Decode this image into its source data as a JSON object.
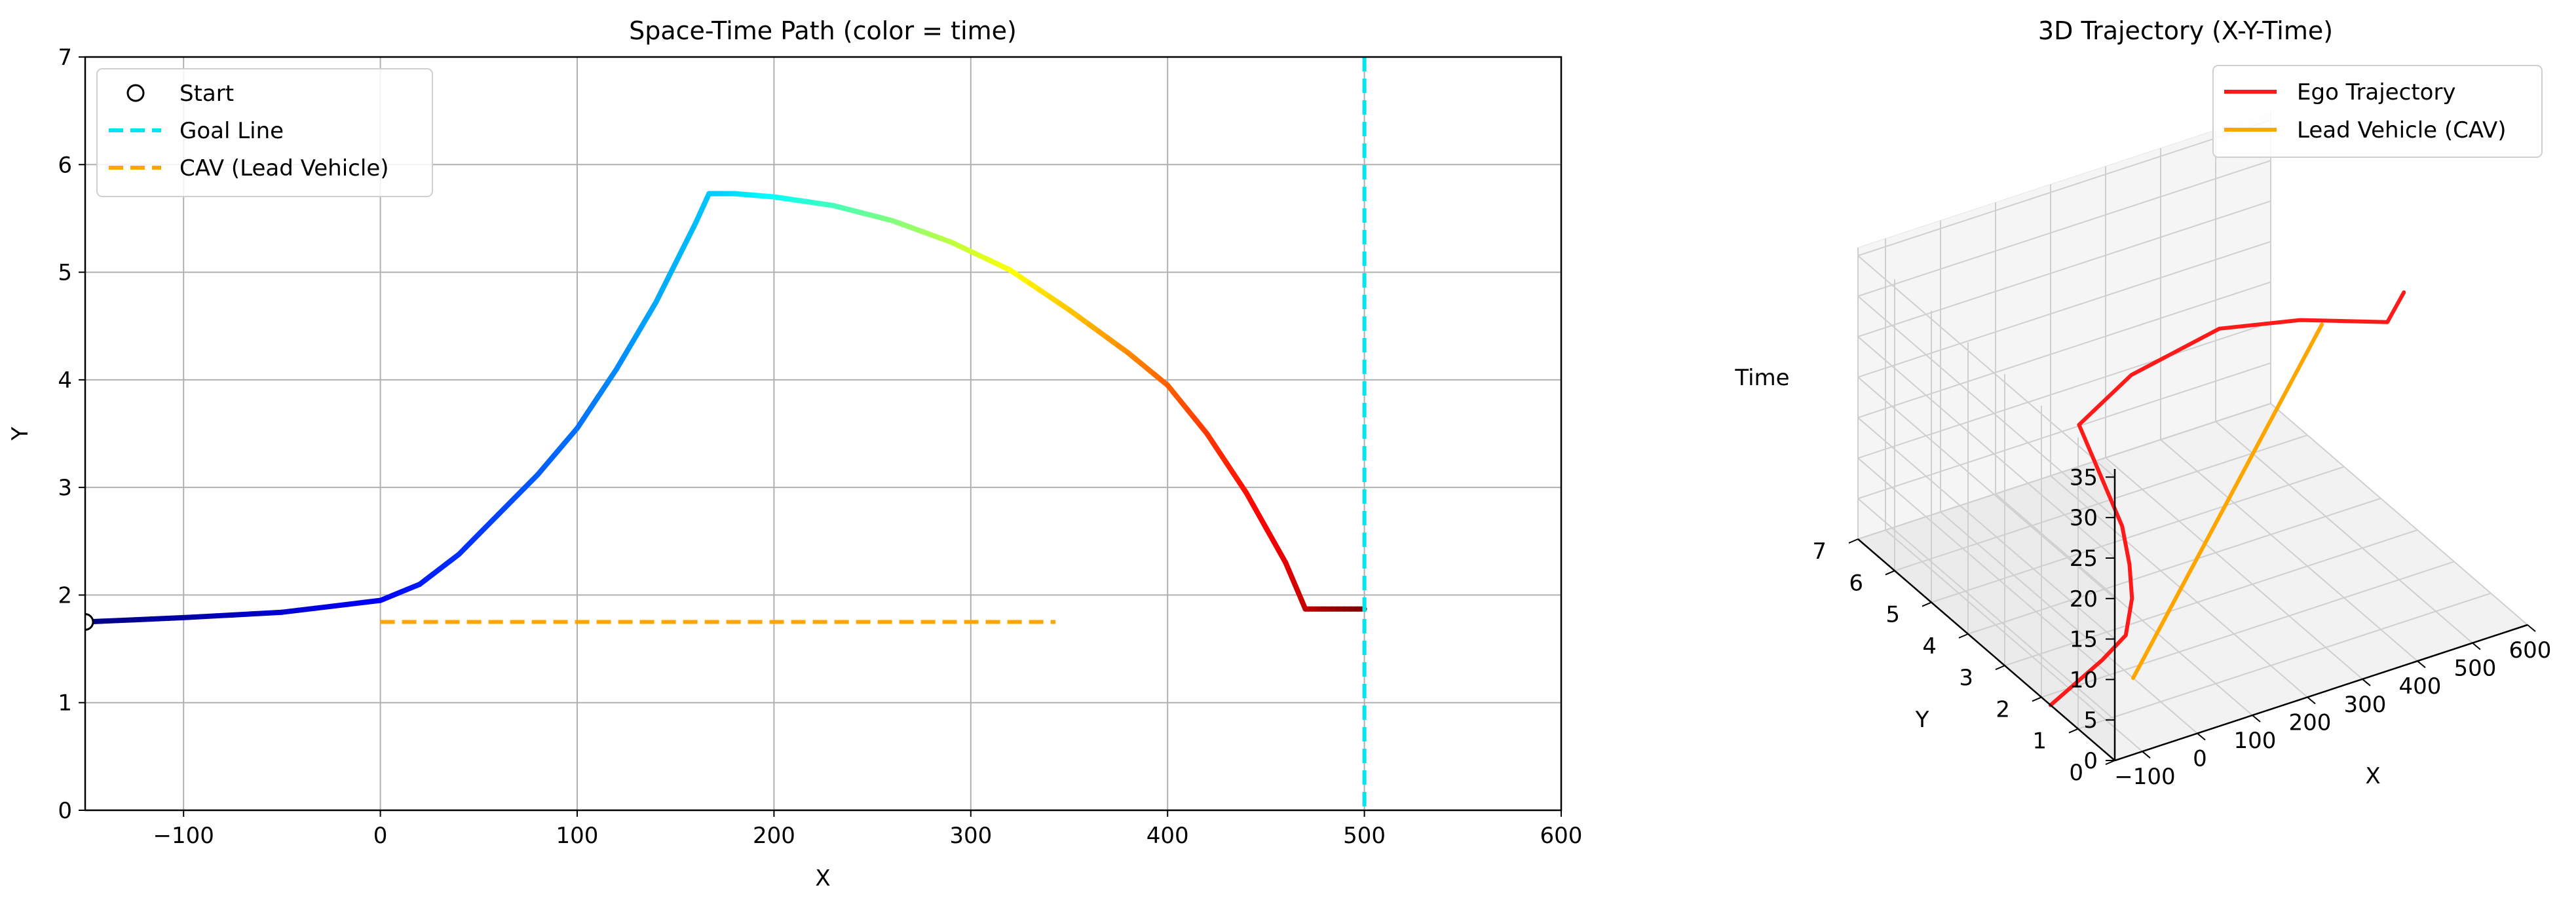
{
  "chart_data": [
    {
      "type": "line",
      "title": "Space-Time Path (color = time)",
      "xlabel": "X",
      "ylabel": "Y",
      "xlim": [
        -150,
        600
      ],
      "ylim": [
        0,
        7
      ],
      "xticks": [
        -100,
        0,
        100,
        200,
        300,
        400,
        500,
        600
      ],
      "yticks": [
        0,
        1,
        2,
        3,
        4,
        5,
        6,
        7
      ],
      "xtick_labels": [
        "−100",
        "0",
        "100",
        "200",
        "300",
        "400",
        "500",
        "600"
      ],
      "ytick_labels": [
        "0",
        "1",
        "2",
        "3",
        "4",
        "5",
        "6",
        "7"
      ],
      "grid": true,
      "legend_position": "upper-left",
      "color_scale": "jet (time)",
      "series": [
        {
          "name": "Start",
          "kind": "marker",
          "marker": "open-circle",
          "color": "#000000",
          "x": [
            -150
          ],
          "y": [
            1.75
          ]
        },
        {
          "name": "Goal Line",
          "kind": "vertical-line",
          "style": "dashed",
          "color": "#00e5ee",
          "x_value": 500
        },
        {
          "name": "CAV (Lead Vehicle)",
          "kind": "line",
          "style": "dashed",
          "color": "#ffa500",
          "x": [
            0,
            343
          ],
          "y": [
            1.75,
            1.75
          ]
        },
        {
          "kind": "colored-path",
          "x": [
            -150,
            -100,
            -50,
            0,
            20,
            40,
            60,
            80,
            100,
            120,
            140,
            160,
            167,
            180,
            200,
            230,
            260,
            290,
            320,
            350,
            380,
            400,
            420,
            440,
            460,
            470,
            480,
            500
          ],
          "y": [
            1.75,
            1.79,
            1.84,
            1.95,
            2.1,
            2.38,
            2.75,
            3.12,
            3.55,
            4.1,
            4.72,
            5.45,
            5.73,
            5.73,
            5.7,
            5.62,
            5.48,
            5.28,
            5.02,
            4.65,
            4.25,
            3.95,
            3.5,
            2.95,
            2.3,
            1.87,
            1.87,
            1.87
          ],
          "t": [
            0,
            0.04,
            0.08,
            0.12,
            0.15,
            0.17,
            0.19,
            0.215,
            0.235,
            0.26,
            0.29,
            0.31,
            0.32,
            0.34,
            0.38,
            0.44,
            0.5,
            0.56,
            0.62,
            0.68,
            0.74,
            0.78,
            0.82,
            0.86,
            0.9,
            0.93,
            0.97,
            1.0
          ]
        }
      ]
    },
    {
      "type": "line",
      "subtype": "3d",
      "title": "3D Trajectory (X-Y-Time)",
      "xlabel": "X",
      "ylabel": "Y",
      "zlabel": "Time",
      "xlim": [
        -150,
        600
      ],
      "ylim": [
        0,
        7
      ],
      "zlim": [
        0,
        36
      ],
      "xticks": [
        -100,
        0,
        100,
        200,
        300,
        400,
        500,
        600
      ],
      "yticks": [
        0,
        1,
        2,
        3,
        4,
        5,
        6,
        7
      ],
      "zticks": [
        0,
        5,
        10,
        15,
        20,
        25,
        30,
        35
      ],
      "xtick_labels": [
        "−100",
        "0",
        "100",
        "200",
        "300",
        "400",
        "500",
        "600"
      ],
      "ytick_labels": [
        "0",
        "1",
        "2",
        "3",
        "4",
        "5",
        "6",
        "7"
      ],
      "ztick_labels": [
        "0",
        "5",
        "10",
        "15",
        "20",
        "25",
        "30",
        "35"
      ],
      "grid": true,
      "legend_position": "upper-right",
      "series": [
        {
          "name": "Ego Trajectory",
          "color": "#ff1a1a",
          "x": [
            -150,
            -50,
            0,
            40,
            70,
            100,
            167,
            250,
            350,
            420,
            470,
            500
          ],
          "y": [
            1.75,
            1.84,
            1.95,
            2.38,
            2.9,
            3.55,
            5.73,
            5.55,
            4.65,
            3.5,
            1.87,
            1.87
          ],
          "t": [
            0,
            3,
            4.5,
            6.5,
            8,
            9.5,
            12,
            17,
            24,
            28,
            33,
            36
          ]
        },
        {
          "name": "Lead Vehicle (CAV)",
          "color": "#ffa500",
          "x": [
            0,
            343
          ],
          "y": [
            1.75,
            1.75
          ],
          "t": [
            0,
            36
          ]
        }
      ]
    }
  ]
}
